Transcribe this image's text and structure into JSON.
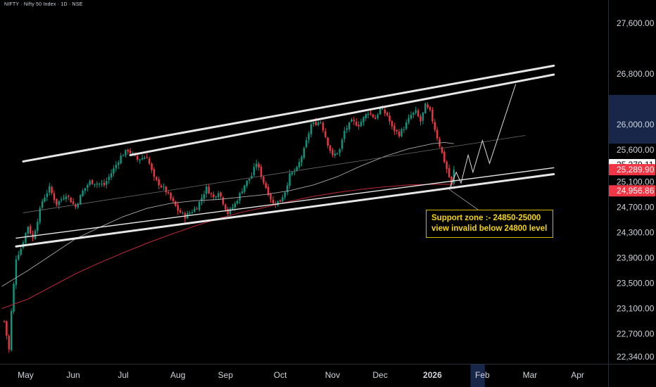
{
  "header": {
    "symbol_line": "NIFTY · Nifty 50 Index · 1D · NSE"
  },
  "annotation": {
    "line1": "Support zone :- 24850-25000",
    "line2": "view invalid below 24800 level"
  },
  "colors": {
    "up": "#089981",
    "down": "#f23645",
    "ma_red": "#b22833",
    "ma_grey": "#a8a8a8",
    "trendline": "#e6e6e6",
    "annotation_text": "#f5d60a",
    "background": "#000000",
    "axis_text": "#d1d4dc"
  },
  "chart_data": {
    "type": "candlestick",
    "x_ticks": [
      {
        "label": "May",
        "idx": 9
      },
      {
        "label": "Jun",
        "idx": 29
      },
      {
        "label": "Jul",
        "idx": 50
      },
      {
        "label": "Aug",
        "idx": 73
      },
      {
        "label": "Sep",
        "idx": 93
      },
      {
        "label": "Oct",
        "idx": 116
      },
      {
        "label": "Nov",
        "idx": 138
      },
      {
        "label": "Dec",
        "idx": 158
      },
      {
        "label": "2026",
        "idx": 180
      },
      {
        "label": "Feb",
        "idx": 201
      },
      {
        "label": "Mar",
        "idx": 221
      },
      {
        "label": "Apr",
        "idx": 241
      }
    ],
    "y_ticks": [
      22340,
      22700,
      23100,
      23500,
      23900,
      24300,
      24700,
      25100,
      25600,
      26000,
      26800,
      27600
    ],
    "y_tick_labels": [
      "22,340.00",
      "22,700.00",
      "23,100.00",
      "23,500.00",
      "23,900.00",
      "24,300.00",
      "24,700.00",
      "25,100.00",
      "25,600.00",
      "26,000.00",
      "26,800.00",
      "27,600.00"
    ],
    "ylim": [
      22250,
      27830
    ],
    "price_labels": [
      {
        "label": "25,370.11",
        "value": 25370.11,
        "bg": "#ffffff",
        "fg": "#000000"
      },
      {
        "label": "25,289.90",
        "value": 25289.9,
        "bg": "#f23645",
        "fg": "#ffffff"
      },
      {
        "label": "24,956.86",
        "value": 24956.86,
        "bg": "#f23645",
        "fg": "#ffffff"
      }
    ],
    "highlight_band": {
      "from": 25700,
      "to": 26470
    },
    "anchors": [
      [
        0,
        22900
      ],
      [
        2,
        22450
      ],
      [
        3,
        23050
      ],
      [
        5,
        23900
      ],
      [
        7,
        24050
      ],
      [
        10,
        24400
      ],
      [
        12,
        24200
      ],
      [
        16,
        24800
      ],
      [
        19,
        25000
      ],
      [
        22,
        24750
      ],
      [
        26,
        24900
      ],
      [
        30,
        24700
      ],
      [
        33,
        24950
      ],
      [
        36,
        25100
      ],
      [
        42,
        25050
      ],
      [
        46,
        25300
      ],
      [
        49,
        25500
      ],
      [
        52,
        25600
      ],
      [
        56,
        25450
      ],
      [
        60,
        25500
      ],
      [
        63,
        25150
      ],
      [
        68,
        24950
      ],
      [
        73,
        24650
      ],
      [
        76,
        24550
      ],
      [
        81,
        24700
      ],
      [
        85,
        25000
      ],
      [
        88,
        24850
      ],
      [
        90,
        24950
      ],
      [
        94,
        24600
      ],
      [
        97,
        24750
      ],
      [
        101,
        25050
      ],
      [
        104,
        25200
      ],
      [
        106,
        25400
      ],
      [
        109,
        25100
      ],
      [
        113,
        24750
      ],
      [
        116,
        24800
      ],
      [
        118,
        24950
      ],
      [
        120,
        25200
      ],
      [
        123,
        25300
      ],
      [
        126,
        25600
      ],
      [
        129,
        26000
      ],
      [
        133,
        26050
      ],
      [
        136,
        25700
      ],
      [
        138,
        25500
      ],
      [
        141,
        25600
      ],
      [
        143,
        25900
      ],
      [
        146,
        26050
      ],
      [
        149,
        26000
      ],
      [
        153,
        26200
      ],
      [
        156,
        26100
      ],
      [
        158,
        26250
      ],
      [
        161,
        26150
      ],
      [
        163,
        25950
      ],
      [
        166,
        25850
      ],
      [
        168,
        25950
      ],
      [
        171,
        26150
      ],
      [
        173,
        26200
      ],
      [
        175,
        26050
      ],
      [
        177,
        26300
      ],
      [
        179,
        26200
      ],
      [
        182,
        25800
      ],
      [
        184,
        25550
      ],
      [
        186,
        25300
      ],
      [
        188,
        25050
      ],
      [
        189,
        25290
      ]
    ],
    "ma_grey_points": [
      [
        -1,
        23450
      ],
      [
        10,
        23700
      ],
      [
        20,
        23950
      ],
      [
        30,
        24200
      ],
      [
        40,
        24380
      ],
      [
        50,
        24550
      ],
      [
        60,
        24680
      ],
      [
        70,
        24760
      ],
      [
        80,
        24800
      ],
      [
        90,
        24820
      ],
      [
        100,
        24860
      ],
      [
        110,
        24900
      ],
      [
        120,
        24960
      ],
      [
        130,
        25050
      ],
      [
        140,
        25180
      ],
      [
        150,
        25350
      ],
      [
        160,
        25500
      ],
      [
        170,
        25620
      ],
      [
        180,
        25700
      ],
      [
        185,
        25720
      ],
      [
        189,
        25700
      ]
    ],
    "ma_red_points": [
      [
        -1,
        23100
      ],
      [
        10,
        23250
      ],
      [
        20,
        23450
      ],
      [
        30,
        23650
      ],
      [
        40,
        23820
      ],
      [
        50,
        23980
      ],
      [
        60,
        24130
      ],
      [
        70,
        24270
      ],
      [
        80,
        24400
      ],
      [
        90,
        24520
      ],
      [
        100,
        24620
      ],
      [
        110,
        24700
      ],
      [
        120,
        24790
      ],
      [
        130,
        24870
      ],
      [
        140,
        24930
      ],
      [
        150,
        24980
      ],
      [
        160,
        25020
      ],
      [
        170,
        25050
      ],
      [
        180,
        25060
      ],
      [
        189,
        25060
      ]
    ],
    "trendlines": [
      {
        "p1": [
          8,
          25420
        ],
        "p2": [
          231,
          26930
        ],
        "width": 3
      },
      {
        "p1": [
          53,
          25520
        ],
        "p2": [
          231,
          26790
        ],
        "width": 3
      },
      {
        "p1": [
          5,
          24080
        ],
        "p2": [
          231,
          25220
        ],
        "width": 3
      },
      {
        "p1": [
          5,
          24210
        ],
        "p2": [
          231,
          25320
        ],
        "width": 1.4
      },
      {
        "p1": [
          8,
          24610
        ],
        "p2": [
          219,
          25830
        ],
        "width": 0.8,
        "color": "#6b6b6b"
      }
    ],
    "projection_path": [
      [
        187,
        24980
      ],
      [
        190,
        25250
      ],
      [
        192,
        25080
      ],
      [
        195,
        25520
      ],
      [
        197,
        25250
      ],
      [
        201,
        25750
      ],
      [
        204,
        25390
      ],
      [
        215,
        26640
      ]
    ]
  }
}
